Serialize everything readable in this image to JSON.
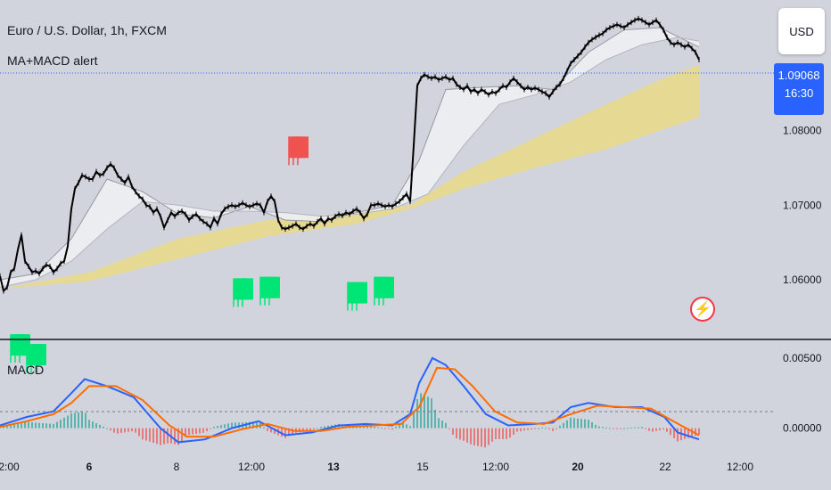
{
  "chart_data": {
    "type": "line",
    "title": "Euro / U.S. Dollar, 1h, FXCM",
    "indicator_name": "MA+MACD alert",
    "currency": "USD",
    "last_price": "1.09068",
    "countdown": "16:30",
    "price_axis_ticks": [
      "1.08000",
      "1.07000",
      "1.06000"
    ],
    "macd_axis_ticks": [
      "0.00500",
      "0.00000"
    ],
    "macd_label": "MACD",
    "time_ticks": [
      {
        "label": "2:00",
        "bold": false
      },
      {
        "label": "6",
        "bold": true
      },
      {
        "label": "8",
        "bold": false
      },
      {
        "label": "12:00",
        "bold": false
      },
      {
        "label": "13",
        "bold": true
      },
      {
        "label": "15",
        "bold": false
      },
      {
        "label": "12:00",
        "bold": false
      },
      {
        "label": "20",
        "bold": true
      },
      {
        "label": "22",
        "bold": false
      },
      {
        "label": "12:00",
        "bold": false
      }
    ],
    "ylim": [
      1.052,
      1.0975
    ],
    "macd_ylim": [
      -0.0025,
      0.0062
    ],
    "price_series": [
      [
        0,
        1.0605
      ],
      [
        4,
        1.0585
      ],
      [
        8,
        1.059
      ],
      [
        12,
        1.061
      ],
      [
        16,
        1.0615
      ],
      [
        20,
        1.064
      ],
      [
        24,
        1.066
      ],
      [
        28,
        1.0625
      ],
      [
        32,
        1.0618
      ],
      [
        36,
        1.061
      ],
      [
        40,
        1.0612
      ],
      [
        44,
        1.0608
      ],
      [
        48,
        1.0615
      ],
      [
        52,
        1.062
      ],
      [
        56,
        1.0618
      ],
      [
        60,
        1.061
      ],
      [
        64,
        1.0615
      ],
      [
        68,
        1.0622
      ],
      [
        72,
        1.0625
      ],
      [
        76,
        1.0645
      ],
      [
        80,
        1.0695
      ],
      [
        84,
        1.0722
      ],
      [
        88,
        1.073
      ],
      [
        92,
        1.074
      ],
      [
        96,
        1.0738
      ],
      [
        100,
        1.0735
      ],
      [
        104,
        1.0735
      ],
      [
        108,
        1.0745
      ],
      [
        112,
        1.074
      ],
      [
        116,
        1.0742
      ],
      [
        120,
        1.075
      ],
      [
        124,
        1.0755
      ],
      [
        128,
        1.075
      ],
      [
        132,
        1.074
      ],
      [
        136,
        1.0735
      ],
      [
        140,
        1.073
      ],
      [
        144,
        1.0738
      ],
      [
        148,
        1.0725
      ],
      [
        152,
        1.0718
      ],
      [
        156,
        1.0712
      ],
      [
        160,
        1.0708
      ],
      [
        164,
        1.07
      ],
      [
        168,
        1.0698
      ],
      [
        172,
        1.069
      ],
      [
        176,
        1.0695
      ],
      [
        180,
        1.0685
      ],
      [
        184,
        1.067
      ],
      [
        188,
        1.068
      ],
      [
        192,
        1.069
      ],
      [
        196,
        1.0685
      ],
      [
        200,
        1.069
      ],
      [
        204,
        1.0692
      ],
      [
        208,
        1.0688
      ],
      [
        212,
        1.068
      ],
      [
        216,
        1.0685
      ],
      [
        220,
        1.0688
      ],
      [
        224,
        1.0682
      ],
      [
        228,
        1.0678
      ],
      [
        232,
        1.0675
      ],
      [
        236,
        1.067
      ],
      [
        240,
        1.0682
      ],
      [
        244,
        1.0675
      ],
      [
        248,
        1.0688
      ],
      [
        252,
        1.0695
      ],
      [
        256,
        1.0698
      ],
      [
        260,
        1.07
      ],
      [
        264,
        1.0698
      ],
      [
        268,
        1.07
      ],
      [
        272,
        1.0703
      ],
      [
        276,
        1.07
      ],
      [
        280,
        1.0698
      ],
      [
        284,
        1.07
      ],
      [
        288,
        1.0702
      ],
      [
        292,
        1.07
      ],
      [
        296,
        1.069
      ],
      [
        300,
        1.0705
      ],
      [
        304,
        1.0712
      ],
      [
        308,
        1.0705
      ],
      [
        312,
        1.068
      ],
      [
        316,
        1.067
      ],
      [
        320,
        1.0668
      ],
      [
        324,
        1.067
      ],
      [
        328,
        1.0672
      ],
      [
        332,
        1.0675
      ],
      [
        336,
        1.067
      ],
      [
        340,
        1.0668
      ],
      [
        344,
        1.0672
      ],
      [
        348,
        1.0675
      ],
      [
        352,
        1.0672
      ],
      [
        356,
        1.0678
      ],
      [
        360,
        1.0682
      ],
      [
        364,
        1.0675
      ],
      [
        368,
        1.0682
      ],
      [
        372,
        1.068
      ],
      [
        376,
        1.0685
      ],
      [
        380,
        1.0688
      ],
      [
        384,
        1.0686
      ],
      [
        388,
        1.069
      ],
      [
        392,
        1.0688
      ],
      [
        396,
        1.0692
      ],
      [
        400,
        1.0695
      ],
      [
        404,
        1.069
      ],
      [
        408,
        1.0682
      ],
      [
        412,
        1.0688
      ],
      [
        416,
        1.07
      ],
      [
        420,
        1.07
      ],
      [
        424,
        1.0702
      ],
      [
        428,
        1.07
      ],
      [
        432,
        1.0698
      ],
      [
        436,
        1.07
      ],
      [
        440,
        1.0698
      ],
      [
        444,
        1.0702
      ],
      [
        448,
        1.0705
      ],
      [
        452,
        1.071
      ],
      [
        456,
        1.0715
      ],
      [
        460,
        1.0705
      ],
      [
        464,
        1.078
      ],
      [
        468,
        1.086
      ],
      [
        472,
        1.087
      ],
      [
        476,
        1.0875
      ],
      [
        480,
        1.0872
      ],
      [
        484,
        1.087
      ],
      [
        488,
        1.0872
      ],
      [
        492,
        1.0868
      ],
      [
        496,
        1.087
      ],
      [
        500,
        1.0872
      ],
      [
        504,
        1.0868
      ],
      [
        508,
        1.087
      ],
      [
        512,
        1.0862
      ],
      [
        516,
        1.0858
      ],
      [
        520,
        1.0855
      ],
      [
        524,
        1.086
      ],
      [
        528,
        1.0852
      ],
      [
        532,
        1.0855
      ],
      [
        536,
        1.085
      ],
      [
        540,
        1.0855
      ],
      [
        544,
        1.0852
      ],
      [
        548,
        1.0848
      ],
      [
        552,
        1.0852
      ],
      [
        556,
        1.085
      ],
      [
        560,
        1.0855
      ],
      [
        564,
        1.086
      ],
      [
        568,
        1.0858
      ],
      [
        572,
        1.0865
      ],
      [
        576,
        1.087
      ],
      [
        580,
        1.0865
      ],
      [
        584,
        1.086
      ],
      [
        588,
        1.0855
      ],
      [
        592,
        1.0858
      ],
      [
        596,
        1.0855
      ],
      [
        600,
        1.0857
      ],
      [
        604,
        1.0855
      ],
      [
        608,
        1.0852
      ],
      [
        612,
        1.085
      ],
      [
        616,
        1.0845
      ],
      [
        620,
        1.0852
      ],
      [
        624,
        1.0858
      ],
      [
        628,
        1.0862
      ],
      [
        632,
        1.087
      ],
      [
        636,
        1.088
      ],
      [
        640,
        1.089
      ],
      [
        644,
        1.0895
      ],
      [
        648,
        1.09
      ],
      [
        652,
        1.0905
      ],
      [
        656,
        1.0912
      ],
      [
        660,
        1.0918
      ],
      [
        664,
        1.0922
      ],
      [
        668,
        1.0925
      ],
      [
        672,
        1.0928
      ],
      [
        676,
        1.093
      ],
      [
        680,
        1.0935
      ],
      [
        684,
        1.0938
      ],
      [
        688,
        1.094
      ],
      [
        692,
        1.0942
      ],
      [
        696,
        1.094
      ],
      [
        700,
        1.0938
      ],
      [
        704,
        1.0942
      ],
      [
        708,
        1.0945
      ],
      [
        712,
        1.0948
      ],
      [
        716,
        1.095
      ],
      [
        720,
        1.0948
      ],
      [
        724,
        1.0945
      ],
      [
        728,
        1.0942
      ],
      [
        732,
        1.0945
      ],
      [
        736,
        1.0948
      ],
      [
        740,
        1.0942
      ],
      [
        744,
        1.0935
      ],
      [
        748,
        1.0925
      ],
      [
        752,
        1.0918
      ],
      [
        756,
        1.0915
      ],
      [
        760,
        1.0918
      ],
      [
        764,
        1.0915
      ],
      [
        768,
        1.0912
      ],
      [
        772,
        1.0915
      ],
      [
        776,
        1.091
      ],
      [
        780,
        1.0905
      ],
      [
        784,
        1.0895
      ]
    ],
    "ma_fast_series": [
      [
        0,
        1.06
      ],
      [
        40,
        1.0608
      ],
      [
        80,
        1.0655
      ],
      [
        120,
        1.0735
      ],
      [
        160,
        1.0718
      ],
      [
        200,
        1.0688
      ],
      [
        240,
        1.0683
      ],
      [
        280,
        1.0698
      ],
      [
        320,
        1.068
      ],
      [
        360,
        1.0678
      ],
      [
        400,
        1.069
      ],
      [
        440,
        1.07
      ],
      [
        470,
        1.076
      ],
      [
        500,
        1.0855
      ],
      [
        540,
        1.0858
      ],
      [
        580,
        1.086
      ],
      [
        620,
        1.0855
      ],
      [
        660,
        1.0905
      ],
      [
        700,
        1.0935
      ],
      [
        740,
        1.0938
      ],
      [
        784,
        1.0912
      ]
    ],
    "ma_slow_series": [
      [
        0,
        1.059
      ],
      [
        40,
        1.06
      ],
      [
        80,
        1.0625
      ],
      [
        120,
        1.0668
      ],
      [
        160,
        1.0705
      ],
      [
        200,
        1.07
      ],
      [
        240,
        1.0692
      ],
      [
        280,
        1.0692
      ],
      [
        320,
        1.069
      ],
      [
        360,
        1.0685
      ],
      [
        400,
        1.0688
      ],
      [
        440,
        1.0695
      ],
      [
        480,
        1.0715
      ],
      [
        520,
        1.078
      ],
      [
        560,
        1.0835
      ],
      [
        600,
        1.0848
      ],
      [
        640,
        1.0865
      ],
      [
        680,
        1.0895
      ],
      [
        720,
        1.0915
      ],
      [
        760,
        1.0925
      ],
      [
        784,
        1.092
      ]
    ],
    "ema_ribbon_upper": [
      [
        0,
        1.0588
      ],
      [
        100,
        1.061
      ],
      [
        200,
        1.0655
      ],
      [
        300,
        1.068
      ],
      [
        400,
        1.069
      ],
      [
        460,
        1.07
      ],
      [
        520,
        1.0745
      ],
      [
        600,
        1.079
      ],
      [
        680,
        1.0835
      ],
      [
        740,
        1.0868
      ],
      [
        784,
        1.0888
      ]
    ],
    "ema_ribbon_lower": [
      [
        0,
        1.0588
      ],
      [
        100,
        1.0598
      ],
      [
        200,
        1.0628
      ],
      [
        300,
        1.0658
      ],
      [
        400,
        1.0675
      ],
      [
        460,
        1.0695
      ],
      [
        520,
        1.0722
      ],
      [
        600,
        1.075
      ],
      [
        680,
        1.0775
      ],
      [
        740,
        1.08
      ],
      [
        784,
        1.0818
      ]
    ],
    "sell_signals": [
      [
        332,
        1.078
      ]
    ],
    "buy_signals": [
      [
        20,
        1.0515
      ],
      [
        38,
        1.0502
      ],
      [
        270,
        1.059
      ],
      [
        300,
        1.0592
      ],
      [
        398,
        1.0585
      ],
      [
        428,
        1.0592
      ]
    ],
    "macd_line": [
      [
        0,
        0.0002
      ],
      [
        30,
        0.0008
      ],
      [
        60,
        0.0012
      ],
      [
        80,
        0.0025
      ],
      [
        95,
        0.0035
      ],
      [
        120,
        0.003
      ],
      [
        150,
        0.0022
      ],
      [
        180,
        0.0
      ],
      [
        200,
        -0.001
      ],
      [
        230,
        -0.0008
      ],
      [
        260,
        0.0
      ],
      [
        290,
        0.0005
      ],
      [
        320,
        -0.0005
      ],
      [
        350,
        -0.0003
      ],
      [
        380,
        0.0002
      ],
      [
        410,
        0.0003
      ],
      [
        440,
        0.0002
      ],
      [
        460,
        0.001
      ],
      [
        470,
        0.0032
      ],
      [
        485,
        0.005
      ],
      [
        500,
        0.0045
      ],
      [
        520,
        0.003
      ],
      [
        545,
        0.001
      ],
      [
        570,
        0.0002
      ],
      [
        600,
        0.0003
      ],
      [
        620,
        0.0004
      ],
      [
        640,
        0.0015
      ],
      [
        660,
        0.0018
      ],
      [
        690,
        0.0015
      ],
      [
        720,
        0.0015
      ],
      [
        745,
        0.0008
      ],
      [
        760,
        -0.0003
      ],
      [
        784,
        -0.0008
      ]
    ],
    "signal_line": [
      [
        0,
        0.0001
      ],
      [
        30,
        0.0005
      ],
      [
        60,
        0.001
      ],
      [
        80,
        0.0018
      ],
      [
        100,
        0.003
      ],
      [
        130,
        0.003
      ],
      [
        160,
        0.002
      ],
      [
        190,
        0.0002
      ],
      [
        210,
        -0.0006
      ],
      [
        240,
        -0.0006
      ],
      [
        270,
        -0.0001
      ],
      [
        300,
        0.0003
      ],
      [
        330,
        -0.0002
      ],
      [
        360,
        -0.0002
      ],
      [
        390,
        0.0001
      ],
      [
        420,
        0.0002
      ],
      [
        450,
        0.0003
      ],
      [
        470,
        0.0015
      ],
      [
        490,
        0.0043
      ],
      [
        510,
        0.0042
      ],
      [
        530,
        0.003
      ],
      [
        555,
        0.0012
      ],
      [
        580,
        0.0004
      ],
      [
        610,
        0.0003
      ],
      [
        640,
        0.001
      ],
      [
        670,
        0.0016
      ],
      [
        700,
        0.0015
      ],
      [
        730,
        0.0014
      ],
      [
        755,
        0.0005
      ],
      [
        784,
        -0.0005
      ]
    ],
    "grid": false,
    "legend": "top-left"
  }
}
